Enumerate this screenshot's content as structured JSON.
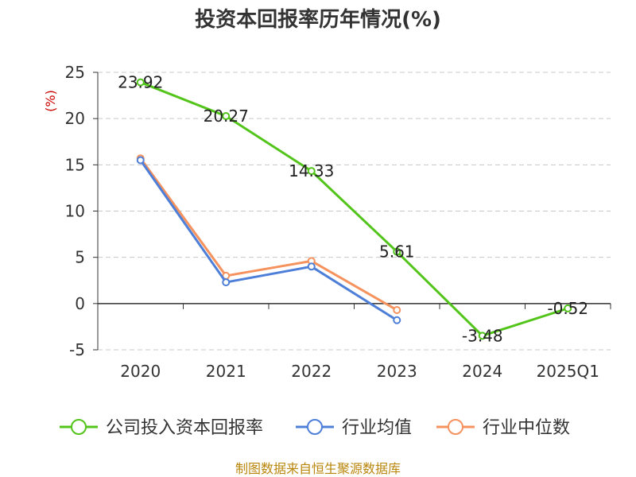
{
  "chart_data": {
    "type": "line",
    "title": "投资本回报率历年情况(%)",
    "unit_label": "(%)",
    "categories": [
      "2020",
      "2021",
      "2022",
      "2023",
      "2024",
      "2025Q1"
    ],
    "ylim": [
      -5,
      25
    ],
    "yticks": [
      -5,
      0,
      5,
      10,
      15,
      20,
      25
    ],
    "ytick_labels": [
      "-5",
      "0",
      "5",
      "10",
      "15",
      "20",
      "25"
    ],
    "grid": true,
    "legend_position": "bottom",
    "series": [
      {
        "name": "公司投入资本回报率",
        "color": "#52c41a",
        "values": [
          23.92,
          20.27,
          14.33,
          5.61,
          -3.48,
          -0.52
        ],
        "labels": [
          "23.92",
          "20.27",
          "14.33",
          "5.61",
          "-3.48",
          "-0.52"
        ]
      },
      {
        "name": "行业均值",
        "color": "#4e7fd8",
        "values": [
          15.5,
          2.3,
          4.0,
          -1.8,
          null,
          null
        ]
      },
      {
        "name": "行业中位数",
        "color": "#f5925e",
        "values": [
          15.7,
          3.0,
          4.6,
          -0.7,
          null,
          null
        ]
      }
    ],
    "source": "制图数据来自恒生聚源数据库"
  }
}
